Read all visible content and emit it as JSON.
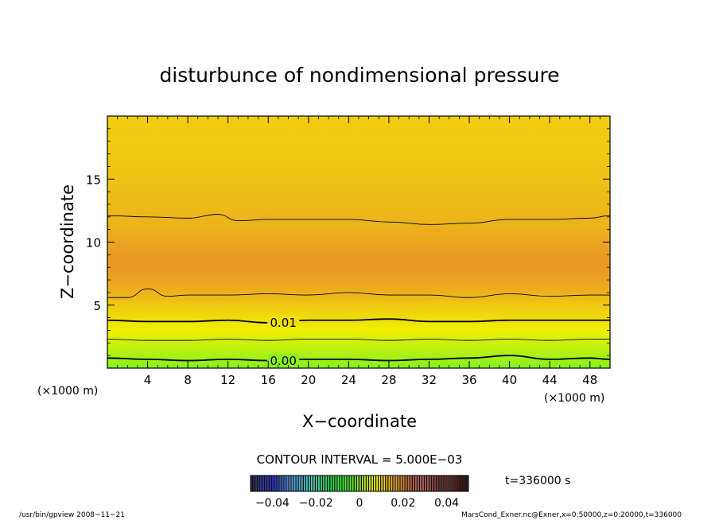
{
  "chart_data": {
    "type": "heatmap",
    "title": "disturbunce of nondimensional pressure",
    "xlabel": "X−coordinate",
    "ylabel": "Z−coordinate",
    "x_unit": "(×1000 m)",
    "y_unit": "(×1000 m)",
    "xlim": [
      0,
      50
    ],
    "ylim": [
      0,
      20
    ],
    "x_ticks": [
      4,
      8,
      12,
      16,
      20,
      24,
      28,
      32,
      36,
      40,
      44,
      48
    ],
    "x_tick_labels": [
      "4",
      "8",
      "12",
      "16",
      "20",
      "24",
      "28",
      "32",
      "36",
      "40",
      "44",
      "48"
    ],
    "y_ticks": [
      5,
      10,
      15
    ],
    "y_tick_labels": [
      "5",
      "10",
      "15"
    ],
    "field_profile": {
      "z": [
        0,
        1,
        2,
        3,
        4,
        5,
        6,
        7,
        8,
        9,
        10,
        11,
        12,
        13,
        14,
        15,
        16,
        17,
        18,
        19,
        20
      ],
      "value": [
        -0.0005,
        0.002,
        0.005,
        0.008,
        0.0105,
        0.013,
        0.0152,
        0.0165,
        0.0172,
        0.017,
        0.0162,
        0.0153,
        0.0147,
        0.0143,
        0.014,
        0.0137,
        0.0134,
        0.0131,
        0.0129,
        0.0127,
        0.0126
      ]
    },
    "contours": [
      {
        "level": 0.0,
        "label": "0.00",
        "emphasis": true,
        "points": [
          [
            0,
            0.8
          ],
          [
            4,
            0.7
          ],
          [
            8,
            0.6
          ],
          [
            12,
            0.7
          ],
          [
            16,
            0.6
          ],
          [
            20,
            0.7
          ],
          [
            24,
            0.7
          ],
          [
            28,
            0.6
          ],
          [
            32,
            0.7
          ],
          [
            36,
            0.8
          ],
          [
            40,
            1.0
          ],
          [
            44,
            0.7
          ],
          [
            48,
            0.8
          ],
          [
            50,
            0.7
          ]
        ]
      },
      {
        "level": 0.005,
        "label": "",
        "emphasis": false,
        "points": [
          [
            0,
            2.3
          ],
          [
            4,
            2.2
          ],
          [
            8,
            2.2
          ],
          [
            12,
            2.3
          ],
          [
            16,
            2.2
          ],
          [
            20,
            2.3
          ],
          [
            24,
            2.3
          ],
          [
            28,
            2.2
          ],
          [
            32,
            2.3
          ],
          [
            36,
            2.2
          ],
          [
            40,
            2.3
          ],
          [
            44,
            2.2
          ],
          [
            48,
            2.3
          ],
          [
            50,
            2.3
          ]
        ]
      },
      {
        "level": 0.01,
        "label": "0.01",
        "emphasis": true,
        "points": [
          [
            0,
            3.8
          ],
          [
            4,
            3.7
          ],
          [
            8,
            3.7
          ],
          [
            12,
            3.8
          ],
          [
            16,
            3.6
          ],
          [
            20,
            3.8
          ],
          [
            24,
            3.8
          ],
          [
            28,
            3.9
          ],
          [
            32,
            3.7
          ],
          [
            36,
            3.7
          ],
          [
            40,
            3.8
          ],
          [
            44,
            3.8
          ],
          [
            48,
            3.8
          ],
          [
            50,
            3.8
          ]
        ]
      },
      {
        "level": 0.015,
        "label": "",
        "emphasis": false,
        "points": [
          [
            0,
            5.6
          ],
          [
            2,
            5.6
          ],
          [
            4,
            6.3
          ],
          [
            6,
            5.7
          ],
          [
            8,
            5.8
          ],
          [
            12,
            5.8
          ],
          [
            16,
            5.9
          ],
          [
            20,
            5.8
          ],
          [
            24,
            6.0
          ],
          [
            28,
            5.8
          ],
          [
            32,
            5.8
          ],
          [
            36,
            5.6
          ],
          [
            40,
            5.9
          ],
          [
            44,
            5.7
          ],
          [
            48,
            5.8
          ],
          [
            50,
            5.8
          ]
        ]
      },
      {
        "level": 0.015,
        "label": "",
        "emphasis": false,
        "points": [
          [
            0,
            12.1
          ],
          [
            4,
            12.0
          ],
          [
            8,
            11.9
          ],
          [
            11,
            12.2
          ],
          [
            13,
            11.7
          ],
          [
            16,
            11.8
          ],
          [
            20,
            11.8
          ],
          [
            24,
            11.8
          ],
          [
            28,
            11.6
          ],
          [
            32,
            11.4
          ],
          [
            36,
            11.5
          ],
          [
            40,
            11.8
          ],
          [
            44,
            11.8
          ],
          [
            48,
            11.9
          ],
          [
            50,
            12.1
          ]
        ]
      }
    ],
    "contour_interval_text": "CONTOUR INTERVAL = 5.000E−03",
    "colorbar": {
      "range": [
        -0.05,
        0.05
      ],
      "tick_values": [
        -0.04,
        -0.02,
        0,
        0.02,
        0.04
      ],
      "tick_labels": [
        "−0.04",
        "−0.02",
        "0",
        "0.02",
        "0.04"
      ],
      "colors": [
        "#151530",
        "#1e1e8c",
        "#2828c8",
        "#3c6ed2",
        "#50aae6",
        "#3cc8c8",
        "#32d28c",
        "#1ee650",
        "#28f028",
        "#64f028",
        "#b4f014",
        "#f0f000",
        "#f0c814",
        "#e68c28",
        "#c8643c",
        "#b45050",
        "#8c3c3c",
        "#6e2828",
        "#501414",
        "#280a0a"
      ]
    },
    "time_text": "t=336000 s",
    "legend": "none",
    "grid": false
  },
  "footer": {
    "left": "/usr/bin/gpview   2008−11−21",
    "right": "MarsCond_Exner.nc@Exner,x=0:50000,z=0:20000,t=336000"
  }
}
